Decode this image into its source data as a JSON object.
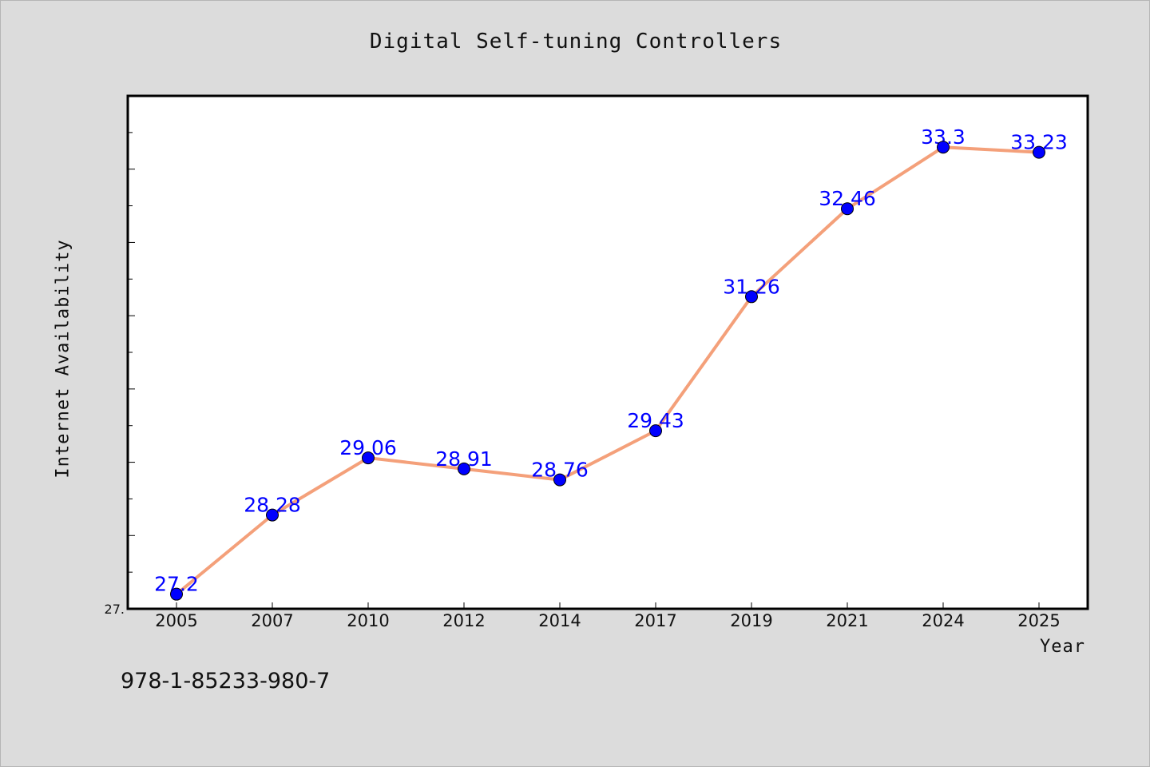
{
  "chart_data": {
    "type": "line",
    "title": "Digital Self-tuning Controllers",
    "xlabel": "Year",
    "ylabel": "Internet Availability",
    "categories": [
      "2005",
      "2007",
      "2010",
      "2012",
      "2014",
      "2017",
      "2019",
      "2021",
      "2024",
      "2025"
    ],
    "series": [
      {
        "values": [
          27.2,
          28.28,
          29.06,
          28.91,
          28.76,
          29.43,
          31.26,
          32.46,
          33.3,
          33.23
        ],
        "data_labels": [
          "27.2",
          "28.28",
          "29.06",
          "28.91",
          "28.76",
          "29.43",
          "31.26",
          "32.46",
          "33.3",
          "33.23"
        ],
        "line_color": "#f4a07a",
        "marker_color": "#0000ff"
      }
    ],
    "y_tick_label": "27.",
    "ylim": [
      27.0,
      34.0
    ],
    "grid": false,
    "legend": "none"
  },
  "footer_text": "978-1-85233-980-7",
  "colors": {
    "background": "#dcdcdc",
    "plot_area": "#ffffff",
    "data_label": "#0000ff"
  }
}
